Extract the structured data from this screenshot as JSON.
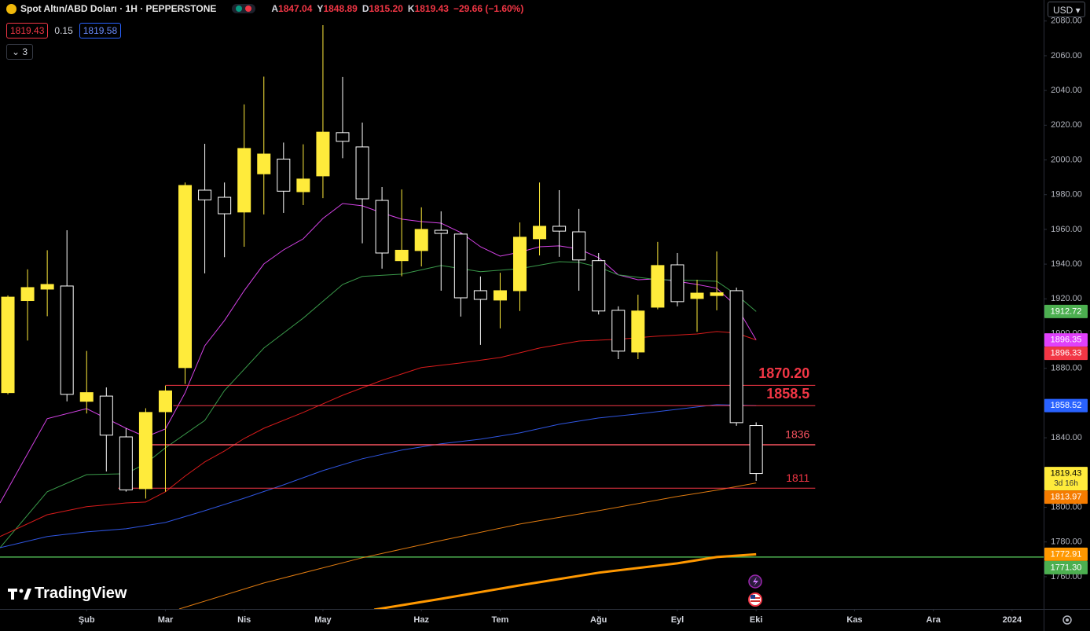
{
  "header": {
    "symbol": "Spot Altın/ABD Doları · 1H · PEPPERSTONE",
    "ohlc": [
      {
        "key": "A",
        "value": "1847.04"
      },
      {
        "key": "Y",
        "value": "1848.89"
      },
      {
        "key": "D",
        "value": "1815.20"
      },
      {
        "key": "K",
        "value": "1819.43"
      }
    ],
    "change": "−29.66 (−1.60%)",
    "sell": "1819.43",
    "spread": "0.15",
    "buy": "1819.58",
    "indicators": "3"
  },
  "currency": "USD",
  "logo": "TradingView",
  "chart_data": {
    "type": "candlestick",
    "x": [
      0,
      1,
      2,
      3,
      4,
      5,
      6,
      7,
      8,
      9,
      10,
      11,
      12,
      13,
      14,
      15,
      16,
      17,
      18,
      19,
      20,
      21,
      22,
      23,
      24,
      25,
      26,
      27,
      28,
      29,
      30,
      31,
      32,
      33,
      34,
      35,
      36,
      37,
      38
    ],
    "open": [
      1866,
      1919,
      1925.6,
      1927.4,
      1861,
      1864,
      1840.5,
      1810.7,
      1855,
      1880.4,
      1982.6,
      1978.5,
      1970,
      1992,
      2000.5,
      1981.7,
      1990.8,
      2015.7,
      2007.5,
      1976.7,
      1942,
      1947.8,
      1959.5,
      1957.3,
      1924.7,
      1919.3,
      1924.7,
      1954.6,
      1961.8,
      1958.6,
      1942,
      1913.4,
      1889.4,
      1915.2,
      1939.6,
      1920.2,
      1921.9,
      1924.7,
      1847.04
    ],
    "high": [
      1922,
      1937,
      1948,
      1959.5,
      1890,
      1869,
      1845.5,
      1857,
      1870,
      1987,
      2009.3,
      1987,
      2032,
      2048,
      2010,
      2009,
      2077.6,
      2047.8,
      2021.5,
      1984.4,
      1983,
      1972.7,
      1970.4,
      1958,
      1932.9,
      1935,
      1964,
      1987,
      1982.6,
      1971.8,
      1946.4,
      1915.7,
      1922.4,
      1952.8,
      1946.4,
      1931,
      1947.3,
      1926.5,
      1848.89
    ],
    "low": [
      1865,
      1896,
      1910,
      1861,
      1854,
      1820.6,
      1809,
      1805,
      1809,
      1871,
      1934.7,
      1944,
      1950,
      1968.6,
      1969.5,
      1974,
      1978,
      2001,
      1952,
      1937.4,
      1933,
      1938.7,
      1924.7,
      1909.8,
      1893.5,
      1903,
      1913,
      1945,
      1944.2,
      1924.7,
      1911,
      1885.3,
      1885.3,
      1914,
      1915.7,
      1901,
      1913.4,
      1846.9,
      1815.2
    ],
    "close": [
      1921,
      1926.5,
      1928.3,
      1865,
      1866,
      1841.5,
      1810,
      1854.6,
      1867,
      1985.3,
      1977,
      1969,
      2006.6,
      2003.4,
      1982,
      1989,
      2016,
      2010.7,
      1977.6,
      1946.4,
      1948,
      1960,
      1957.7,
      1920.6,
      1919.7,
      1924.7,
      1955.5,
      1961.8,
      1959,
      1942.4,
      1913,
      1889.9,
      1913,
      1939.2,
      1918.4,
      1923.3,
      1923.5,
      1848.7,
      1819.43
    ],
    "up_color": "#ffeb3b",
    "down_color": "#ffffff",
    "series": [
      {
        "color": "#d442e6",
        "x": [
          -0.4,
          2,
          4,
          6,
          7,
          8,
          9,
          10,
          11,
          12,
          13,
          14,
          15,
          16,
          17,
          18,
          19,
          20,
          21,
          22,
          23,
          24,
          25,
          26,
          27,
          28,
          29,
          30,
          31,
          32,
          33,
          34,
          35,
          36,
          37,
          38
        ],
        "values": [
          1802.5,
          1851,
          1856.8,
          1845.5,
          1840.5,
          1845.1,
          1865.9,
          1893,
          1907.5,
          1924.7,
          1940.1,
          1948.2,
          1954.6,
          1966.3,
          1974.9,
          1973.6,
          1969.5,
          1965.9,
          1964.5,
          1963.6,
          1958.2,
          1950,
          1944.6,
          1946.9,
          1950,
          1950.5,
          1948.7,
          1943.7,
          1933.8,
          1931,
          1931.5,
          1930.1,
          1928.3,
          1926.1,
          1915.7,
          1896.35
        ]
      },
      {
        "color": "#3a9a4a",
        "x": [
          -0.4,
          2,
          4,
          6,
          7,
          8,
          10,
          11,
          13,
          15,
          17,
          18,
          20,
          22,
          24,
          26,
          28,
          29,
          30,
          31,
          33,
          35,
          36,
          37,
          38
        ],
        "values": [
          1776.7,
          1808.9,
          1818.8,
          1819.3,
          1825.2,
          1834.2,
          1850,
          1867.2,
          1891.7,
          1908.9,
          1928.3,
          1932.9,
          1934.2,
          1939.2,
          1935.6,
          1937.4,
          1941.4,
          1941,
          1938.3,
          1933.8,
          1931,
          1930.6,
          1930.1,
          1922.4,
          1912.72
        ]
      },
      {
        "color": "#d81b1b",
        "x": [
          -0.4,
          2,
          4,
          6,
          7,
          8,
          9,
          10,
          11,
          12,
          13,
          15,
          17,
          19,
          21,
          23,
          25,
          27,
          29,
          31,
          33,
          35,
          36,
          37,
          38
        ],
        "values": [
          1783.1,
          1795.7,
          1800.3,
          1802.5,
          1803,
          1808.9,
          1817.9,
          1826.1,
          1832.4,
          1839.6,
          1845.5,
          1854.6,
          1864.5,
          1873.1,
          1880.4,
          1883.1,
          1886.2,
          1891.7,
          1895.7,
          1896.7,
          1898.5,
          1899.8,
          1901.2,
          1900.3,
          1896.33
        ]
      },
      {
        "color": "#2f55e0",
        "x": [
          -0.4,
          2,
          4,
          6,
          8,
          10,
          12,
          14,
          16,
          18,
          20,
          22,
          24,
          26,
          28,
          30,
          32,
          34,
          36,
          38
        ],
        "values": [
          1776.7,
          1783.1,
          1785.8,
          1787.6,
          1791.2,
          1798,
          1805.2,
          1812.9,
          1821.1,
          1827.9,
          1832.9,
          1836.5,
          1839.2,
          1842.8,
          1847.8,
          1851.4,
          1853.7,
          1856.4,
          1859.1,
          1858.52
        ]
      },
      {
        "color": "#e07b10",
        "x": [
          8.7,
          13,
          18,
          22,
          26,
          30,
          34,
          36,
          38
        ],
        "values": [
          1741.4,
          1756.4,
          1770.9,
          1780.8,
          1790.3,
          1798,
          1806.2,
          1809.8,
          1813.97
        ]
      },
      {
        "color": "#ff9800",
        "width": 3,
        "x": [
          18.6,
          22,
          26,
          30,
          34,
          36,
          38
        ],
        "values": [
          1741,
          1747.3,
          1755,
          1762.3,
          1767.7,
          1771.3,
          1772.91
        ]
      }
    ],
    "levels": [
      {
        "value": 1870.2,
        "label": "1870.20",
        "color": "#f23645",
        "x": [
          8,
          41
        ]
      },
      {
        "value": 1858.5,
        "label": "1858.5",
        "color": "#f23645",
        "x": [
          8.4,
          41
        ]
      },
      {
        "value": 1836,
        "label": "1836",
        "color": "#f7525f",
        "x": [
          7,
          41
        ]
      },
      {
        "value": 1811,
        "label": "1811",
        "color": "#f23645",
        "x": [
          5.6,
          41
        ]
      }
    ],
    "hline": {
      "value": 1771.3,
      "color": "#4caf50"
    },
    "price_tags": [
      {
        "price": 1912.72,
        "color": "#4caf50"
      },
      {
        "price": 1896.35,
        "color": "#e040fb"
      },
      {
        "price": 1896.33,
        "color": "#f23645"
      },
      {
        "price": 1858.52,
        "color": "#2962ff"
      },
      {
        "price": 1819.43,
        "color": "#ffeb3b",
        "countdown": "3d 16h"
      },
      {
        "price": 1813.97,
        "color": "#f57c00"
      },
      {
        "price": 1772.91,
        "color": "#ff9800"
      },
      {
        "price": {
          "value": 1771.3,
          "label": "1771.30"
        },
        "color": "#4caf50"
      }
    ],
    "xlim": [
      -0.4,
      52.6
    ],
    "ylim": [
      1741.4,
      2092.1
    ],
    "xticks": [
      {
        "value": 4,
        "label": "Şub"
      },
      {
        "value": 8,
        "label": "Mar"
      },
      {
        "value": 12,
        "label": "Nis"
      },
      {
        "value": 16,
        "label": "May"
      },
      {
        "value": 21,
        "label": "Haz"
      },
      {
        "value": 25,
        "label": "Tem"
      },
      {
        "value": 30,
        "label": "Ağu"
      },
      {
        "value": 34,
        "label": "Eyl"
      },
      {
        "value": 38,
        "label": "Eki"
      },
      {
        "value": 43,
        "label": "Kas"
      },
      {
        "value": 47,
        "label": "Ara"
      },
      {
        "value": 51,
        "label": "2024"
      }
    ],
    "yticks": [
      {
        "value": 1760,
        "label": "1760.00"
      },
      {
        "value": 1780,
        "label": "1780.00"
      },
      {
        "value": 1800,
        "label": "1800.00"
      },
      {
        "value": 1820,
        "label": "1820.00"
      },
      {
        "value": 1840,
        "label": "1840.00"
      },
      {
        "value": 1860,
        "label": "1860.00"
      },
      {
        "value": 1880,
        "label": "1880.00"
      },
      {
        "value": 1900,
        "label": "1900.00"
      },
      {
        "value": 1920,
        "label": "1920.00"
      },
      {
        "value": 1940,
        "label": "1940.00"
      },
      {
        "value": 1960,
        "label": "1960.00"
      },
      {
        "value": 1980,
        "label": "1980.00"
      },
      {
        "value": 2000,
        "label": "2000.00"
      },
      {
        "value": 2020,
        "label": "2020.00"
      },
      {
        "value": 2040,
        "label": "2040.00"
      },
      {
        "value": 2060,
        "label": "2060.00"
      },
      {
        "value": 2080,
        "label": "2080.00"
      }
    ]
  }
}
